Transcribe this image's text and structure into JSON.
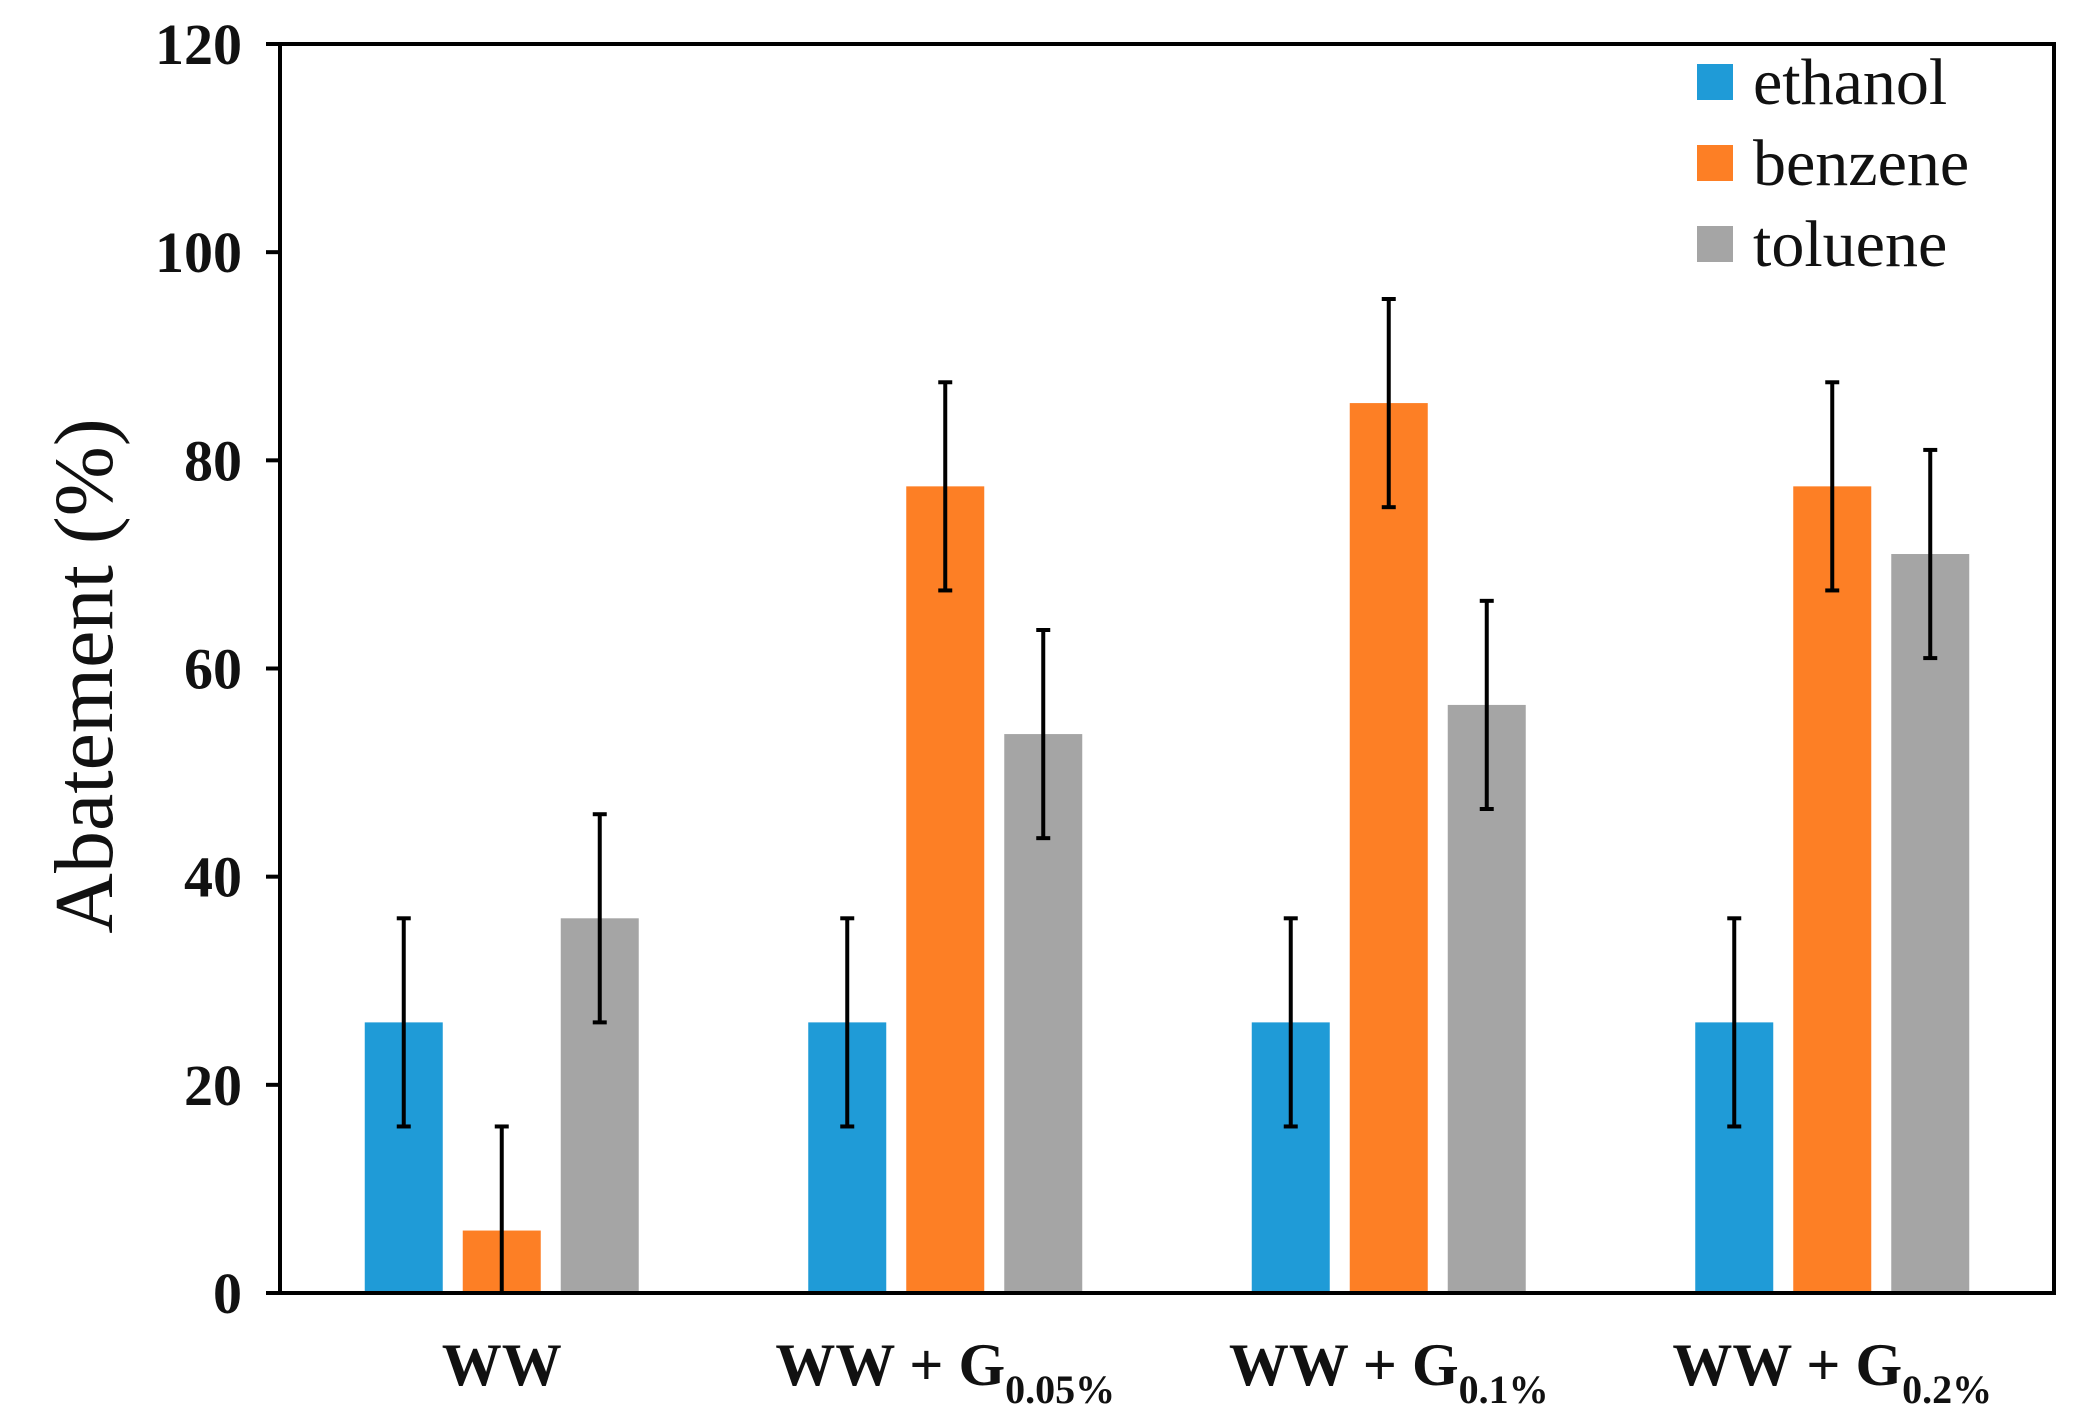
{
  "chart_data": {
    "type": "bar",
    "title": "",
    "xlabel": "",
    "ylabel": "Abatement (%)",
    "ylim": [
      0,
      120
    ],
    "yticks": [
      "0",
      "20",
      "40",
      "60",
      "80",
      "100",
      "120"
    ],
    "grid": false,
    "legend_position": "top-right",
    "categories": [
      {
        "base": "WW",
        "sub": ""
      },
      {
        "base": "WW + G",
        "sub": "0.05%"
      },
      {
        "base": "WW + G",
        "sub": "0.1%"
      },
      {
        "base": "WW + G",
        "sub": "0.2%"
      }
    ],
    "series": [
      {
        "name": "ethanol",
        "color": "#1f9bd7",
        "values": [
          26,
          26,
          26,
          26
        ],
        "errors": [
          10,
          10,
          10,
          10
        ]
      },
      {
        "name": "benzene",
        "color": "#fd7f25",
        "values": [
          6,
          77.5,
          85.5,
          77.5
        ],
        "errors": [
          10,
          10,
          10,
          10
        ]
      },
      {
        "name": "toluene",
        "color": "#a5a5a5",
        "values": [
          36,
          53.7,
          56.5,
          71
        ],
        "errors": [
          10,
          10,
          10,
          10
        ]
      }
    ]
  }
}
